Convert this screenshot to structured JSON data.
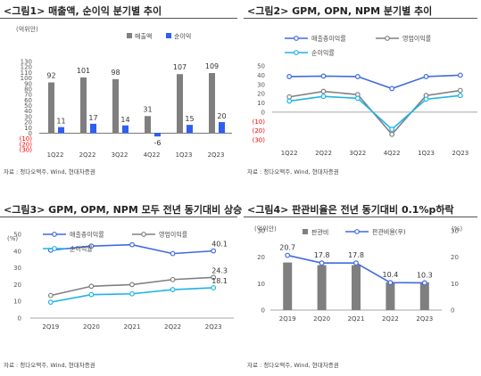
{
  "charts": [
    {
      "title": "<그림1> 매출액, 순이익 분기별 추이",
      "source": "자료 : 청다오맥주, Wind, 현대차증권",
      "unit_label": "(억위안)",
      "chart_data": {
        "type": "bar",
        "categories": [
          "1Q22",
          "2Q22",
          "3Q22",
          "4Q22",
          "1Q23",
          "2Q23"
        ],
        "series": [
          {
            "name": "매출액",
            "values": [
              92,
              101,
              98,
              31,
              107,
              109
            ],
            "labels": [
              "92",
              "101",
              "98",
              "31",
              "107",
              "109"
            ],
            "color": "#7f7f7f"
          },
          {
            "name": "순이익",
            "values": [
              11,
              17,
              14,
              -6,
              15,
              20
            ],
            "labels": [
              "11",
              "17",
              "14",
              "-6",
              "15",
              "20"
            ],
            "color": "#2e5ff0"
          }
        ],
        "ylim": [
          -30,
          130
        ],
        "yticks": [
          "130",
          "120",
          "110",
          "100",
          "90",
          "80",
          "70",
          "60",
          "50",
          "40",
          "30",
          "20",
          "10",
          "0",
          "(10)",
          "(20)",
          "(30)"
        ],
        "negative_tick_color": "#ff0000",
        "legend_placement": "top-right",
        "grid": false
      }
    },
    {
      "title": "<그림2> GPM, OPN, NPM 분기별 추이",
      "source": "자료 : 청다오맥주, Wind, 현대차증권",
      "unit_label": "",
      "chart_data": {
        "type": "line",
        "categories": [
          "1Q22",
          "2Q22",
          "3Q22",
          "4Q22",
          "1Q23",
          "2Q23"
        ],
        "series": [
          {
            "name": "매출총이익률",
            "values": [
              38.5,
              39,
              38.5,
              25.5,
              38.5,
              40
            ],
            "color": "#4169e1"
          },
          {
            "name": "영업이익률",
            "values": [
              16.5,
              22.5,
              19,
              -24,
              18,
              23.5
            ],
            "color": "#808080"
          },
          {
            "name": "순이익률",
            "values": [
              12,
              17,
              15,
              -18.5,
              14,
              18
            ],
            "color": "#1eb4e6"
          }
        ],
        "ylim": [
          -30,
          50
        ],
        "yticks": [
          "50",
          "40",
          "30",
          "20",
          "10",
          "0",
          "(10)",
          "(20)",
          "(30)"
        ],
        "negative_tick_color": "#ff0000",
        "legend_placement": "top",
        "grid": false
      }
    },
    {
      "title": "<그림3> GPM, OPM, NPM 모두 전년 동기대비 상승",
      "source": "자료 : 청다오맥주, Wind, 현대차증권",
      "unit_label": "(%)",
      "chart_data": {
        "type": "line",
        "categories": [
          "2Q19",
          "2Q20",
          "2Q21",
          "2Q22",
          "2Q23"
        ],
        "series": [
          {
            "name": "매출총이익률",
            "values": [
              40.5,
              43,
              43.8,
              38.5,
              40.1
            ],
            "color": "#4169e1"
          },
          {
            "name": "영업이익률",
            "values": [
              13.5,
              19,
              20,
              23,
              24.3
            ],
            "color": "#808080"
          },
          {
            "name": "순이익률",
            "values": [
              9.5,
              14,
              14.5,
              17,
              18.1
            ],
            "color": "#1eb4e6"
          }
        ],
        "data_labels": [
          {
            "series": 0,
            "index": 4,
            "text": "40.1"
          },
          {
            "series": 1,
            "index": 4,
            "text": "24.3"
          },
          {
            "series": 2,
            "index": 4,
            "text": "18.1"
          }
        ],
        "ylim": [
          0,
          50
        ],
        "yticks": [
          "50",
          "40",
          "30",
          "20",
          "10",
          "0"
        ],
        "legend_placement": "top-left",
        "grid": false
      }
    },
    {
      "title": "<그림4> 판관비율은 전년 동기대비 0.1%p하락",
      "source": "자료 : 청다오맥주, Wind, 현대차증권",
      "unit_label": "(억위안)",
      "unit_label_right": "(%)",
      "chart_data": {
        "type": "bar",
        "categories": [
          "2Q19",
          "2Q20",
          "2Q21",
          "2Q22",
          "2Q23"
        ],
        "series": [
          {
            "name": "판관비",
            "type": "bar",
            "values": [
              18,
              17,
              17,
              10.5,
              10.5
            ],
            "color": "#7f7f7f",
            "axis": "left"
          },
          {
            "name": "판관비율(우)",
            "type": "line",
            "values": [
              20.7,
              17.8,
              17.8,
              10.4,
              10.3
            ],
            "labels": [
              "20.7",
              "17.8",
              "17.8",
              "10.4",
              "10.3"
            ],
            "color": "#4169e1",
            "axis": "right"
          }
        ],
        "ylim": [
          0,
          30
        ],
        "yticks": [
          "30",
          "20",
          "10",
          "0"
        ],
        "y2lim": [
          0,
          30
        ],
        "y2ticks": [
          "30",
          "20",
          "10",
          "0"
        ],
        "legend_placement": "top-right",
        "grid": false
      }
    }
  ]
}
